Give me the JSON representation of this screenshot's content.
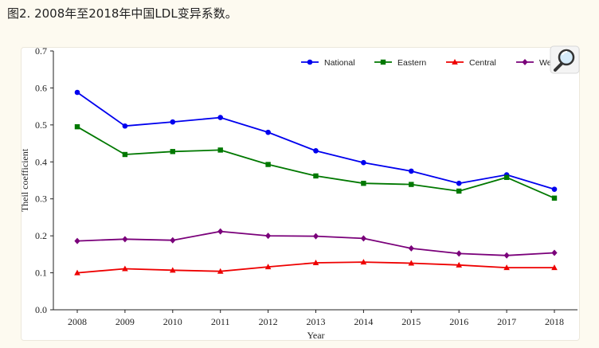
{
  "caption": "图2. 2008年至2018年中国LDL变异系数。",
  "zoom": {
    "icon": "magnifier-icon"
  },
  "chart_data": {
    "type": "line",
    "title": "",
    "xlabel": "Year",
    "ylabel": "Theil coefficient",
    "x": [
      "2008",
      "2009",
      "2010",
      "2011",
      "2012",
      "2013",
      "2014",
      "2015",
      "2016",
      "2017",
      "2018"
    ],
    "ylim": [
      0.0,
      0.7
    ],
    "yticks": [
      "0.0",
      "0.1",
      "0.2",
      "0.3",
      "0.4",
      "0.5",
      "0.6",
      "0.7"
    ],
    "grid": false,
    "legend_position": "top-right",
    "series": [
      {
        "name": "National",
        "color": "#0000ee",
        "marker": "circle",
        "values": [
          0.588,
          0.497,
          0.508,
          0.52,
          0.48,
          0.43,
          0.398,
          0.375,
          0.342,
          0.365,
          0.326
        ]
      },
      {
        "name": "Eastern",
        "color": "#007800",
        "marker": "square",
        "values": [
          0.495,
          0.42,
          0.428,
          0.432,
          0.393,
          0.362,
          0.342,
          0.339,
          0.321,
          0.358,
          0.302
        ]
      },
      {
        "name": "Central",
        "color": "#ee0000",
        "marker": "triangle",
        "values": [
          0.1,
          0.111,
          0.107,
          0.104,
          0.116,
          0.127,
          0.129,
          0.126,
          0.121,
          0.114,
          0.114
        ]
      },
      {
        "name": "Western",
        "color": "#7a007a",
        "marker": "diamond",
        "values": [
          0.186,
          0.191,
          0.188,
          0.212,
          0.2,
          0.199,
          0.193,
          0.166,
          0.152,
          0.147,
          0.154
        ]
      }
    ]
  }
}
